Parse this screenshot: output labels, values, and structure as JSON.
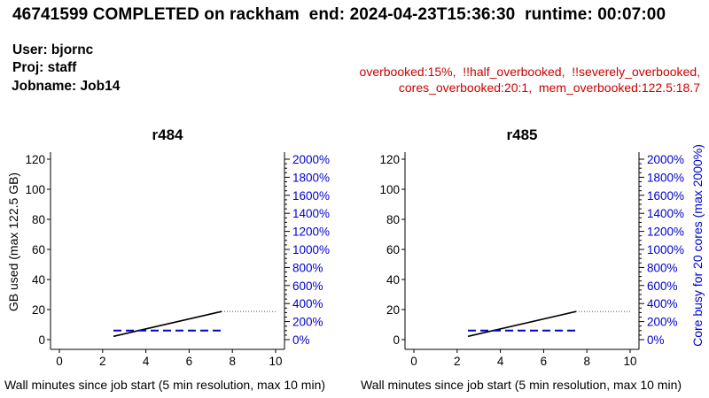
{
  "header": {
    "title": "46741599 COMPLETED on rackham  end: 2024-04-23T15:36:30  runtime: 00:07:00",
    "user": "User: bjornc",
    "project": "Proj: staff",
    "jobname": "Jobname: Job14"
  },
  "flags": {
    "line1": "overbooked:15%,  !!half_overbooked,  !!severely_overbooked,",
    "line2": "cores_overbooked:20:1,  mem_overbooked:122.5:18.7"
  },
  "colors": {
    "text": "#000000",
    "flags": "#cc0000",
    "core_axis": "#0000cc",
    "memory_line": "#000000",
    "core_line": "#0000cc",
    "projection": "#555555"
  },
  "chart_data": [
    {
      "type": "line",
      "title": "r484",
      "xlabel": "Wall minutes since job start (5 min resolution, max 10 min)",
      "ylabel": "GB used (max 122.5 GB)",
      "ylabel_right": "",
      "xlim": [
        0,
        10
      ],
      "ylim": [
        0,
        122.5
      ],
      "y2lim": [
        0,
        2000
      ],
      "x_ticks": [
        "0",
        "2",
        "4",
        "6",
        "8",
        "10"
      ],
      "y_ticks": [
        "0",
        "20",
        "40",
        "60",
        "80",
        "100",
        "120"
      ],
      "y2_ticks": [
        "0%",
        "200%",
        "400%",
        "600%",
        "800%",
        "1000%",
        "1200%",
        "1400%",
        "1600%",
        "1800%",
        "2000%"
      ],
      "grid": false,
      "series": [
        {
          "name": "",
          "axis": "left",
          "style": "solid",
          "color": "#000000",
          "x": [
            2.5,
            7.5
          ],
          "y": [
            2.2,
            18.7
          ]
        },
        {
          "name": "",
          "axis": "right",
          "style": "dashed",
          "color": "#0000cc",
          "x": [
            2.5,
            7.5
          ],
          "y": [
            100,
            100
          ]
        },
        {
          "name": "",
          "axis": "left",
          "style": "dotted",
          "color": "#555555",
          "x": [
            7.5,
            10
          ],
          "y": [
            18.7,
            18.7
          ]
        }
      ]
    },
    {
      "type": "line",
      "title": "r485",
      "xlabel": "Wall minutes since job start (5 min resolution, max 10 min)",
      "ylabel": "",
      "ylabel_right": "Core busy for 20 cores (max 2000%)",
      "xlim": [
        0,
        10
      ],
      "ylim": [
        0,
        122.5
      ],
      "y2lim": [
        0,
        2000
      ],
      "x_ticks": [
        "0",
        "2",
        "4",
        "6",
        "8",
        "10"
      ],
      "y_ticks": [
        "0",
        "20",
        "40",
        "60",
        "80",
        "100",
        "120"
      ],
      "y2_ticks": [
        "0%",
        "200%",
        "400%",
        "600%",
        "800%",
        "1000%",
        "1200%",
        "1400%",
        "1600%",
        "1800%",
        "2000%"
      ],
      "grid": false,
      "series": [
        {
          "name": "",
          "axis": "left",
          "style": "solid",
          "color": "#000000",
          "x": [
            2.5,
            7.5
          ],
          "y": [
            2.2,
            18.7
          ]
        },
        {
          "name": "",
          "axis": "right",
          "style": "dashed",
          "color": "#0000cc",
          "x": [
            2.5,
            7.5
          ],
          "y": [
            100,
            100
          ]
        },
        {
          "name": "",
          "axis": "left",
          "style": "dotted",
          "color": "#555555",
          "x": [
            7.5,
            10
          ],
          "y": [
            18.7,
            18.7
          ]
        }
      ]
    }
  ]
}
